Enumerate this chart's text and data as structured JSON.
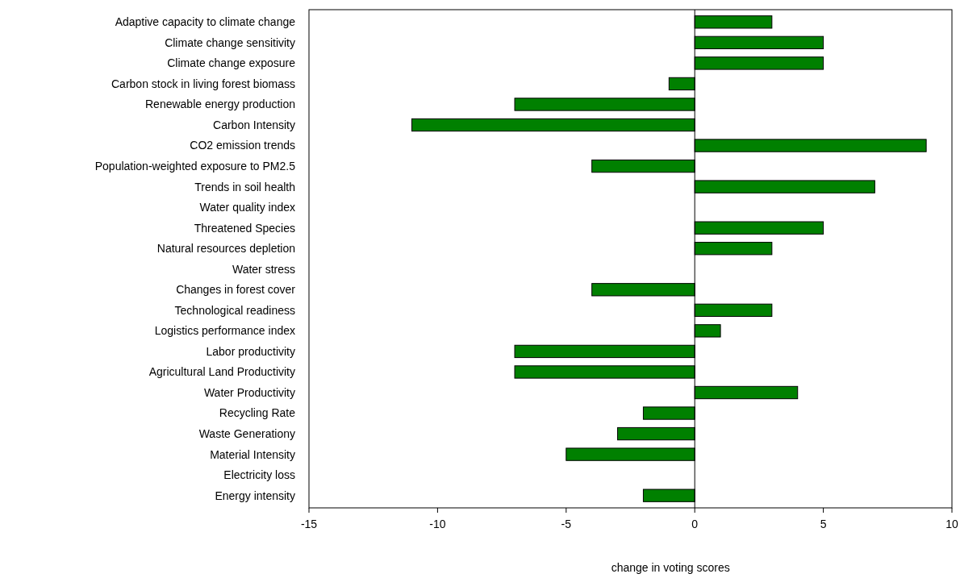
{
  "chart_data": {
    "type": "bar",
    "orientation": "horizontal",
    "xlabel": "change in voting scores",
    "categories": [
      "Adaptive capacity to climate change",
      "Climate change sensitivity",
      "Climate change exposure",
      "Carbon stock in living forest biomass",
      "Renewable energy production",
      "Carbon Intensity",
      "CO2 emission trends",
      "Population-weighted exposure to PM2.5",
      "Trends in soil health",
      "Water quality index",
      "Threatened Species",
      "Natural resources depletion",
      "Water stress",
      "Changes in forest cover",
      "Technological readiness",
      "Logistics performance index",
      "Labor productivity",
      "Agricultural Land Productivity",
      "Water Productivity",
      "Recycling Rate",
      "Waste Generationy",
      "Material Intensity",
      "Electricity loss",
      "Energy intensity"
    ],
    "values": [
      3,
      5,
      5,
      -1,
      -7,
      -11,
      9,
      -4,
      7,
      0,
      5,
      3,
      0,
      -4,
      3,
      1,
      -7,
      -7,
      4,
      -2,
      -3,
      -5,
      0,
      -2
    ],
    "color": "#008000",
    "xlim": [
      -15,
      10
    ],
    "xticks": [
      -15,
      -10,
      -5,
      0,
      5,
      10
    ]
  }
}
